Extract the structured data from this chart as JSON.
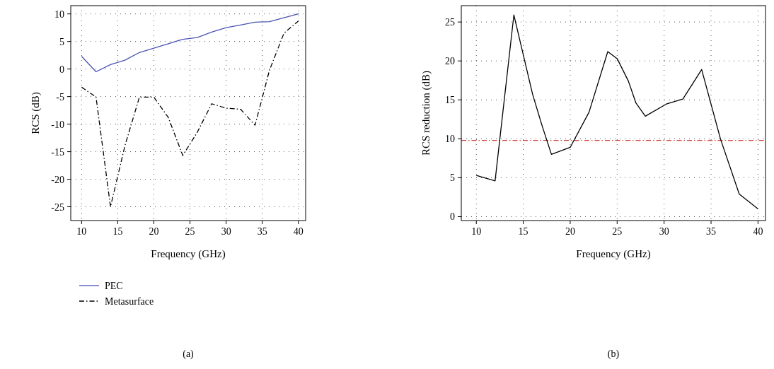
{
  "chart_data": [
    {
      "type": "line",
      "xlabel": "Frequency (GHz)",
      "ylabel": "RCS (dB)",
      "x": [
        10,
        12,
        14,
        16,
        18,
        20,
        22,
        24,
        26,
        28,
        30,
        32,
        34,
        36,
        38,
        40
      ],
      "xlim": [
        8.5,
        41
      ],
      "xticks": [
        10,
        15,
        20,
        25,
        30,
        35,
        40
      ],
      "ylim": [
        -27.5,
        11.5
      ],
      "yticks": [
        -25,
        -20,
        -15,
        -10,
        -5,
        0,
        5,
        10
      ],
      "grid": true,
      "legend": "bottom",
      "annotations": [
        "(a)"
      ],
      "series": [
        {
          "name": "PEC",
          "color": "#4a52b0",
          "line_style": "solid",
          "values": [
            2.3,
            -0.5,
            0.8,
            1.6,
            3.0,
            3.8,
            4.6,
            5.4,
            5.7,
            6.7,
            7.5,
            8.0,
            8.5,
            8.6,
            9.3,
            10.0
          ]
        },
        {
          "name": "Metasurface",
          "color": "#000000",
          "line_style": "dashdot",
          "values": [
            -3.3,
            -5.1,
            -25,
            -13.9,
            -5.1,
            -5.1,
            -8.8,
            -15.7,
            -11.5,
            -6.3,
            -7.1,
            -7.3,
            -10.2,
            -0.2,
            6.5,
            8.7
          ]
        }
      ]
    },
    {
      "type": "line",
      "xlabel": "Frequency (GHz)",
      "ylabel": "RCS reduction (dB)",
      "x": [
        10,
        12,
        14,
        16,
        17,
        18,
        20,
        22,
        24,
        25,
        26.2,
        27,
        28,
        30.3,
        32,
        34,
        36,
        38,
        40
      ],
      "xlim": [
        8.4,
        40.8
      ],
      "xticks": [
        10,
        15,
        20,
        25,
        30,
        35,
        40
      ],
      "ylim": [
        -0.5,
        27.1
      ],
      "yticks": [
        0,
        5,
        10,
        15,
        20,
        25
      ],
      "grid": true,
      "annotations": [
        "(b)"
      ],
      "ref_lines": [
        {
          "axis": "y",
          "value": 9.8,
          "color": "#d04040",
          "line_style": "dashdot"
        }
      ],
      "series": [
        {
          "color": "#000000",
          "line_style": "solid",
          "values": [
            5.3,
            4.6,
            25.9,
            15.7,
            11.7,
            8.0,
            8.9,
            13.4,
            21.2,
            20.3,
            17.4,
            14.6,
            12.9,
            14.5,
            15.1,
            18.9,
            10.0,
            2.9,
            1.0
          ]
        }
      ]
    }
  ]
}
